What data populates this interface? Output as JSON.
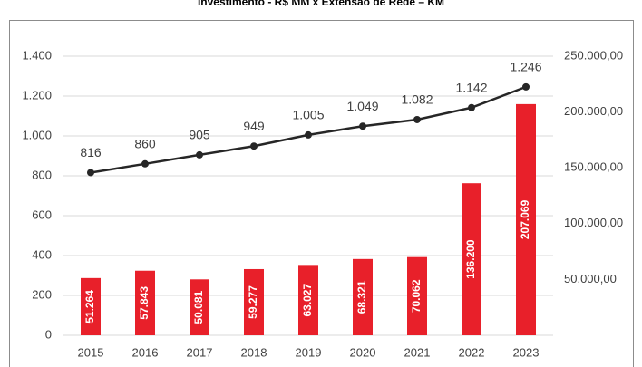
{
  "chart_data": {
    "type": "combo",
    "title": "Investimento - R$ MM x Extensão de Rede – KM",
    "categories": [
      "2015",
      "2016",
      "2017",
      "2018",
      "2019",
      "2020",
      "2021",
      "2022",
      "2023"
    ],
    "series": [
      {
        "type": "bar",
        "axis": "y2",
        "color": "#e8202a",
        "values": [
          51264,
          57843,
          50081,
          59277,
          63027,
          68321,
          70062,
          136200,
          207069
        ],
        "value_labels": [
          "51.264",
          "57.843",
          "50.081",
          "59.277",
          "63.027",
          "68.321",
          "70.062",
          "136.200",
          "207.069"
        ]
      },
      {
        "type": "line",
        "color": "#262626",
        "values": [
          816,
          860,
          905,
          949,
          1005,
          1049,
          1082,
          1142,
          1246
        ],
        "value_labels": [
          "816",
          "860",
          "905",
          "949",
          "1.005",
          "1.049",
          "1.082",
          "1.142",
          "1.246"
        ]
      }
    ],
    "ylim": [
      0,
      1400
    ],
    "yticks": [
      0,
      200,
      400,
      600,
      800,
      {
        "value": 1000,
        "label": "1.000"
      },
      {
        "value": 1200,
        "label": "1.200"
      },
      {
        "value": 1400,
        "label": "1.400"
      }
    ],
    "y2lim": [
      0,
      250000
    ],
    "y2ticks": [
      {
        "value": 50000,
        "label": "50.000,00"
      },
      {
        "value": 100000,
        "label": "100.000,00"
      },
      {
        "value": 150000,
        "label": "150.000,00"
      },
      {
        "value": 200000,
        "label": "200.000,00"
      },
      {
        "value": 250000,
        "label": "250.000,00"
      }
    ],
    "grid": true
  }
}
